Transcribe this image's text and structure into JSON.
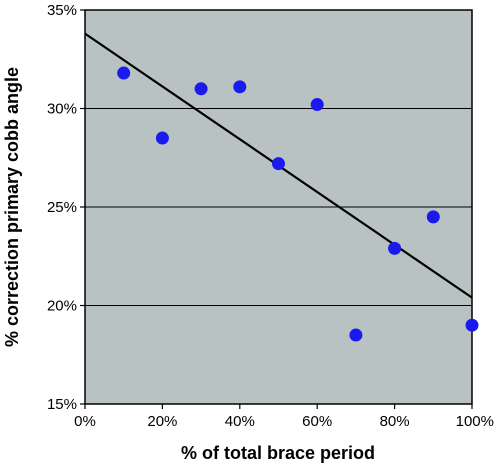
{
  "chart_data": {
    "type": "scatter",
    "title": "",
    "xlabel": "%  of total brace period",
    "ylabel": "% correction primary cobb angle",
    "xlim": [
      0,
      100
    ],
    "ylim": [
      15,
      35
    ],
    "x_ticks": [
      0,
      20,
      40,
      60,
      80,
      100
    ],
    "y_ticks": [
      15,
      20,
      25,
      30,
      35
    ],
    "x_tick_labels": [
      "0%",
      "20%",
      "40%",
      "60%",
      "80%",
      "100%"
    ],
    "y_tick_labels": [
      "15%",
      "20%",
      "25%",
      "30%",
      "35%"
    ],
    "grid": "horizontal",
    "legend": "none",
    "series": [
      {
        "points": [
          {
            "x": 10,
            "y": 31.8
          },
          {
            "x": 20,
            "y": 28.5
          },
          {
            "x": 30,
            "y": 31.0
          },
          {
            "x": 40,
            "y": 31.1
          },
          {
            "x": 50,
            "y": 27.2
          },
          {
            "x": 60,
            "y": 30.2
          },
          {
            "x": 70,
            "y": 18.5
          },
          {
            "x": 80,
            "y": 22.9
          },
          {
            "x": 90,
            "y": 24.5
          },
          {
            "x": 100,
            "y": 19.0
          }
        ],
        "color": "#1a1aee"
      }
    ],
    "trendline": {
      "from": {
        "x": 0,
        "y": 33.8
      },
      "to": {
        "x": 100,
        "y": 20.4
      },
      "color": "#000000"
    },
    "plot_background": "#b8c2c2",
    "gridline_color": "#000000"
  }
}
